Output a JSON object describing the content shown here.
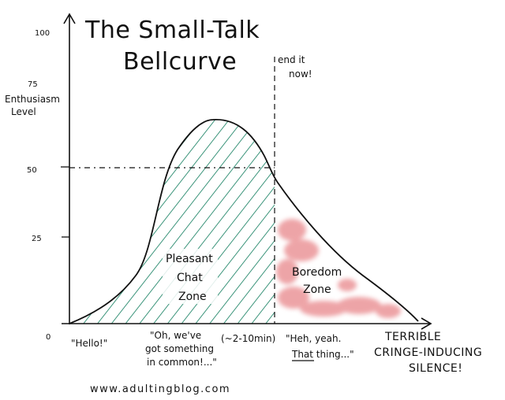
{
  "chart_data": {
    "type": "area",
    "title_line1": "The Small-Talk",
    "title_line2": "Bellcurve",
    "ylabel_line1": "Enthusiasm",
    "ylabel_line2": "Level",
    "ylim": [
      0,
      100
    ],
    "y_ticks": [
      "100",
      "75",
      "50",
      "25",
      "0"
    ],
    "x_annotations": [
      "\"Hello!\"",
      "\"Oh, we've",
      "got something",
      "in common!...\"",
      "(~2-10min)",
      "\"Heh, yeah.",
      "That thing...\"",
      "TERRIBLE",
      "CRINGE-INDUCING",
      "SILENCE!"
    ],
    "cutoff_label_line1": "end it",
    "cutoff_label_line2": "now!",
    "cutoff_level": 50,
    "zones": [
      {
        "line1": "Pleasant",
        "line2": "Chat",
        "line3": "Zone",
        "color": "#0b7a5a"
      },
      {
        "line1": "Boredom",
        "line2": "Zone",
        "color": "#e8868a"
      }
    ],
    "curve_peak_level": 68,
    "colors": {
      "hatch": "#0b7a5a",
      "boredom": "#e8868a",
      "ink": "#111111"
    }
  },
  "footer_url": "www.adultingblog.com"
}
